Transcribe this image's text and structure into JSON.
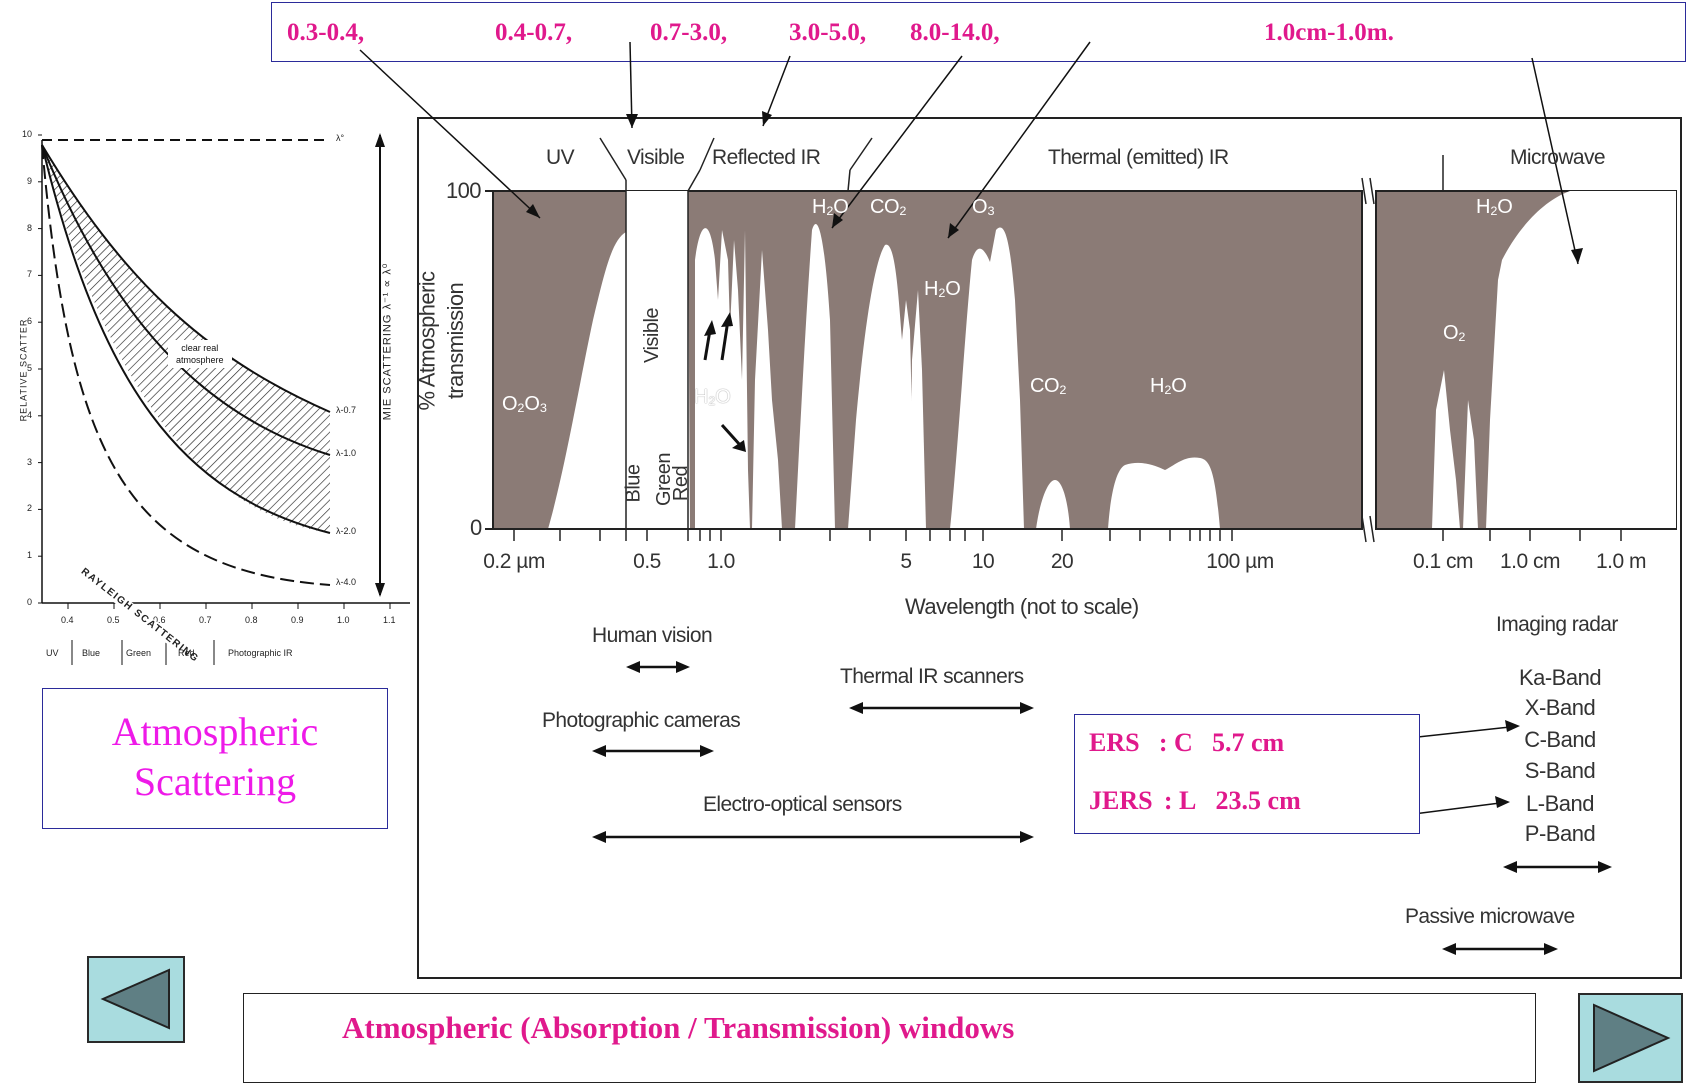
{
  "windows": {
    "labels": [
      "0.3-0.4,",
      "0.4-0.7,",
      "0.7-3.0,",
      "3.0-5.0,",
      "8.0-14.0,",
      "1.0cm-1.0m."
    ]
  },
  "scatter": {
    "caption_line1": "Atmospheric",
    "caption_line2": "Scattering",
    "y_axis_label": "RELATIVE SCATTER",
    "right_axis_label": "MIE SCATTERING λ⁻¹ ∝ λ⁰",
    "curve_labels": [
      "λ°",
      "λ-0.7",
      "λ-1.0",
      "λ-2.0",
      "λ-4.0"
    ],
    "clear_real_atmosphere": [
      "clear real",
      "atmosphere"
    ],
    "rayleigh_label": "RAYLEIGH SCATTERING",
    "y_ticks": [
      "10",
      "9",
      "8",
      "7",
      "6",
      "5",
      "4",
      "3",
      "2",
      "1",
      "0"
    ],
    "x_ticks": [
      "0.4",
      "0.5",
      "0.6",
      "0.7",
      "0.8",
      "0.9",
      "1.0",
      "1.1"
    ],
    "bands": [
      "UV",
      "Blue",
      "Green",
      "Red",
      "Photographic IR"
    ]
  },
  "spectrum": {
    "regions": [
      "UV",
      "Visible",
      "Reflected IR",
      "Thermal (emitted) IR",
      "Microwave"
    ],
    "y_axis_label_1": "% Atmospheric",
    "y_axis_label_2": "transmission",
    "y_top": "100",
    "y_bottom": "0",
    "x_ticks": [
      "0.2 µm",
      "0.5",
      "1.0",
      "5",
      "10",
      "20",
      "100 µm",
      "0.1 cm",
      "1.0 cm",
      "1.0 m"
    ],
    "x_label": "Wavelength (not to scale)",
    "gas_labels": {
      "o2o3": "O₂O₃",
      "h2o_a": "H₂O",
      "co2_a": "CO₂",
      "o3": "O₃",
      "h2o_b": "H₂O",
      "co2_b": "CO₂",
      "h2o_c": "H₂O",
      "h2o_vis": "H₂O",
      "h2o_mw": "H₂O",
      "o2_mw": "O₂"
    },
    "visible_label": "Visible",
    "color_bands": [
      "Blue",
      "Green",
      "Red"
    ],
    "sensors": {
      "human_vision": "Human vision",
      "photo_cameras": "Photographic cameras",
      "thermal_scanners": "Thermal IR scanners",
      "electro_optical": "Electro-optical sensors",
      "imaging_radar": "Imaging radar",
      "passive_microwave": "Passive microwave"
    },
    "radar_bands": [
      "Ka-Band",
      "X-Band",
      "C-Band",
      "S-Band",
      "L-Band",
      "P-Band"
    ]
  },
  "satellites": {
    "ers": {
      "name": "ERS",
      "sep": ": C",
      "value": "5.7 cm"
    },
    "jers": {
      "name": "JERS",
      "sep": ": L",
      "value": "23.5 cm"
    }
  },
  "footer": {
    "title": "Atmospheric (Absorption / Transmission) windows"
  },
  "colors": {
    "absorption": "#8b7b76",
    "accent": "#e0198c",
    "box_border": "#2b2b9a",
    "nav_fill": "#a9dcdf",
    "arrow_fill": "#5f7f84"
  }
}
